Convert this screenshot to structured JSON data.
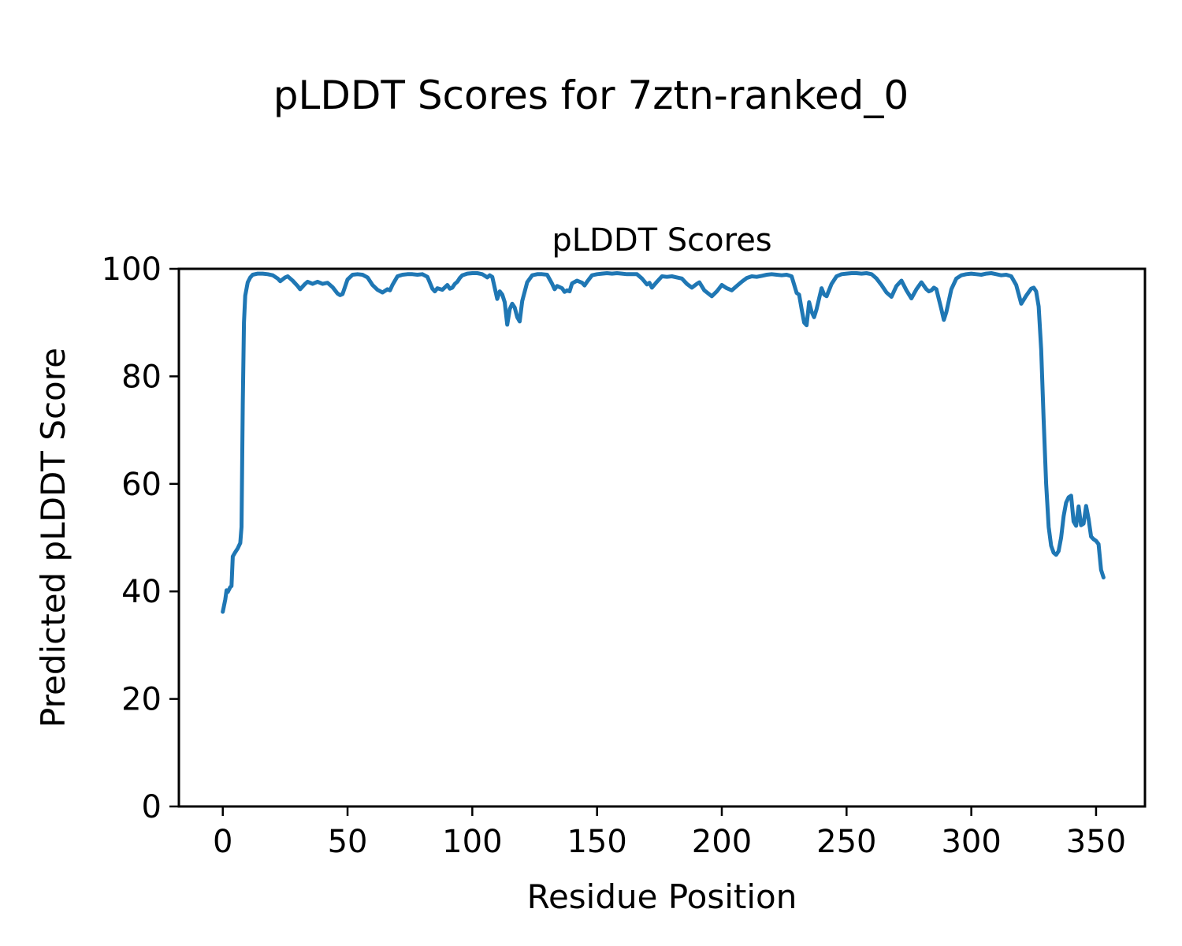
{
  "figure_title": "pLDDT Scores for 7ztn-ranked_0",
  "chart_data": {
    "type": "line",
    "title": "pLDDT Scores",
    "xlabel": "Residue Position",
    "ylabel": "Predicted pLDDT Score",
    "xlim": [
      -17.6,
      369.6
    ],
    "ylim": [
      0,
      100
    ],
    "x_ticks": [
      0,
      50,
      100,
      150,
      200,
      250,
      300,
      350
    ],
    "y_ticks": [
      0,
      20,
      40,
      60,
      80,
      100
    ],
    "grid": false,
    "legend": null,
    "line_color": "#1f77b4",
    "line_width": 5,
    "points": [
      [
        0,
        36.2
      ],
      [
        1,
        38.5
      ],
      [
        1.5,
        40.2
      ],
      [
        2,
        39.9
      ],
      [
        3,
        40.8
      ],
      [
        3.5,
        41
      ],
      [
        4,
        46.5
      ],
      [
        5,
        47.3
      ],
      [
        6,
        48
      ],
      [
        7,
        49
      ],
      [
        7.5,
        52
      ],
      [
        8,
        75
      ],
      [
        8.5,
        90
      ],
      [
        9,
        95
      ],
      [
        10,
        97.5
      ],
      [
        11,
        98.4
      ],
      [
        12,
        98.9
      ],
      [
        14,
        99.1
      ],
      [
        16,
        99.1
      ],
      [
        18,
        99
      ],
      [
        20,
        98.8
      ],
      [
        22,
        98.2
      ],
      [
        23,
        97.7
      ],
      [
        25,
        98.4
      ],
      [
        26,
        98.6
      ],
      [
        28,
        97.8
      ],
      [
        30,
        96.8
      ],
      [
        31,
        96.2
      ],
      [
        33,
        97.2
      ],
      [
        34,
        97.6
      ],
      [
        36,
        97.2
      ],
      [
        38,
        97.6
      ],
      [
        40,
        97.2
      ],
      [
        42,
        97.4
      ],
      [
        44,
        96.6
      ],
      [
        46,
        95.4
      ],
      [
        47,
        95.1
      ],
      [
        48,
        95.3
      ],
      [
        50,
        98
      ],
      [
        52,
        98.9
      ],
      [
        54,
        99
      ],
      [
        56,
        98.9
      ],
      [
        58,
        98.4
      ],
      [
        60,
        97
      ],
      [
        62,
        96.1
      ],
      [
        64,
        95.6
      ],
      [
        65,
        95.9
      ],
      [
        66,
        96.2
      ],
      [
        67,
        96
      ],
      [
        68,
        97
      ],
      [
        70,
        98.6
      ],
      [
        72,
        98.9
      ],
      [
        74,
        99
      ],
      [
        76,
        99
      ],
      [
        78,
        98.9
      ],
      [
        80,
        99
      ],
      [
        82,
        98.5
      ],
      [
        84,
        96.3
      ],
      [
        85,
        95.8
      ],
      [
        86,
        96.4
      ],
      [
        88,
        96.1
      ],
      [
        90,
        97
      ],
      [
        91,
        96.3
      ],
      [
        92,
        96.5
      ],
      [
        93,
        97.2
      ],
      [
        94,
        97.6
      ],
      [
        95,
        98.3
      ],
      [
        96,
        98.8
      ],
      [
        98,
        99.1
      ],
      [
        100,
        99.2
      ],
      [
        102,
        99.2
      ],
      [
        104,
        99
      ],
      [
        106,
        98.4
      ],
      [
        107,
        98.8
      ],
      [
        108,
        98.5
      ],
      [
        110,
        94.4
      ],
      [
        111,
        95.8
      ],
      [
        112,
        95.2
      ],
      [
        113,
        93.8
      ],
      [
        114,
        89.6
      ],
      [
        115,
        92.5
      ],
      [
        116,
        93.5
      ],
      [
        117,
        92.8
      ],
      [
        118,
        91
      ],
      [
        119,
        90.2
      ],
      [
        120,
        94
      ],
      [
        122,
        97.5
      ],
      [
        124,
        98.8
      ],
      [
        126,
        99
      ],
      [
        128,
        99
      ],
      [
        130,
        98.9
      ],
      [
        132,
        97.2
      ],
      [
        133,
        96.2
      ],
      [
        134,
        96.8
      ],
      [
        136,
        96.4
      ],
      [
        137,
        95.7
      ],
      [
        138,
        96
      ],
      [
        139,
        95.8
      ],
      [
        140,
        97.3
      ],
      [
        142,
        97.8
      ],
      [
        144,
        97.4
      ],
      [
        145,
        96.9
      ],
      [
        146,
        97.6
      ],
      [
        148,
        98.8
      ],
      [
        150,
        99
      ],
      [
        152,
        99.1
      ],
      [
        154,
        99.2
      ],
      [
        156,
        99.1
      ],
      [
        158,
        99.2
      ],
      [
        160,
        99.1
      ],
      [
        162,
        99
      ],
      [
        164,
        99
      ],
      [
        166,
        99
      ],
      [
        168,
        98.2
      ],
      [
        170,
        97.1
      ],
      [
        171,
        97.4
      ],
      [
        172,
        96.5
      ],
      [
        174,
        97.6
      ],
      [
        176,
        98.6
      ],
      [
        178,
        98.5
      ],
      [
        180,
        98.6
      ],
      [
        182,
        98.4
      ],
      [
        184,
        98.2
      ],
      [
        186,
        97.2
      ],
      [
        188,
        96.5
      ],
      [
        190,
        97.2
      ],
      [
        191,
        97.5
      ],
      [
        193,
        96
      ],
      [
        196,
        94.9
      ],
      [
        198,
        95.8
      ],
      [
        200,
        97
      ],
      [
        202,
        96.4
      ],
      [
        204,
        96
      ],
      [
        206,
        96.8
      ],
      [
        208,
        97.6
      ],
      [
        210,
        98.3
      ],
      [
        212,
        98.6
      ],
      [
        214,
        98.5
      ],
      [
        216,
        98.7
      ],
      [
        218,
        98.9
      ],
      [
        220,
        99
      ],
      [
        222,
        98.9
      ],
      [
        224,
        98.8
      ],
      [
        226,
        98.9
      ],
      [
        228,
        98.6
      ],
      [
        230,
        95.5
      ],
      [
        231,
        95.2
      ],
      [
        232,
        92.5
      ],
      [
        233,
        90
      ],
      [
        234,
        89.5
      ],
      [
        235,
        93.8
      ],
      [
        236,
        92
      ],
      [
        237,
        91
      ],
      [
        238,
        92.5
      ],
      [
        239,
        94.5
      ],
      [
        240,
        96.4
      ],
      [
        241,
        95.2
      ],
      [
        242,
        94.9
      ],
      [
        244,
        97.2
      ],
      [
        246,
        98.6
      ],
      [
        248,
        99
      ],
      [
        250,
        99.1
      ],
      [
        252,
        99.2
      ],
      [
        254,
        99.2
      ],
      [
        256,
        99.1
      ],
      [
        258,
        99.2
      ],
      [
        260,
        99
      ],
      [
        262,
        98.2
      ],
      [
        264,
        97
      ],
      [
        266,
        95.6
      ],
      [
        268,
        94.8
      ],
      [
        270,
        96.8
      ],
      [
        272,
        97.8
      ],
      [
        274,
        96
      ],
      [
        276,
        94.5
      ],
      [
        278,
        96.2
      ],
      [
        280,
        97.5
      ],
      [
        282,
        96.2
      ],
      [
        283,
        95.8
      ],
      [
        284,
        96
      ],
      [
        285,
        96.5
      ],
      [
        286,
        96.2
      ],
      [
        288,
        92.5
      ],
      [
        289,
        90.5
      ],
      [
        290,
        92
      ],
      [
        292,
        96.2
      ],
      [
        294,
        98.2
      ],
      [
        296,
        98.8
      ],
      [
        298,
        99
      ],
      [
        300,
        99.1
      ],
      [
        302,
        99
      ],
      [
        304,
        98.9
      ],
      [
        306,
        99.1
      ],
      [
        308,
        99.2
      ],
      [
        310,
        99
      ],
      [
        312,
        98.8
      ],
      [
        314,
        98.9
      ],
      [
        316,
        98.6
      ],
      [
        318,
        97
      ],
      [
        320,
        93.5
      ],
      [
        322,
        95
      ],
      [
        324,
        96.3
      ],
      [
        325,
        96.5
      ],
      [
        326,
        95.8
      ],
      [
        327,
        93
      ],
      [
        328,
        85
      ],
      [
        329,
        72
      ],
      [
        330,
        60
      ],
      [
        331,
        52
      ],
      [
        332,
        48.5
      ],
      [
        333,
        47.2
      ],
      [
        334,
        46.8
      ],
      [
        335,
        47.5
      ],
      [
        336,
        50
      ],
      [
        337,
        54
      ],
      [
        338,
        56.5
      ],
      [
        339,
        57.5
      ],
      [
        340,
        57.8
      ],
      [
        341,
        53
      ],
      [
        342,
        52.2
      ],
      [
        343,
        55.8
      ],
      [
        344,
        52.3
      ],
      [
        345,
        52.6
      ],
      [
        346,
        55.9
      ],
      [
        347,
        53.5
      ],
      [
        348,
        50.2
      ],
      [
        349,
        49.7
      ],
      [
        350,
        49.4
      ],
      [
        351,
        48.8
      ],
      [
        352,
        44
      ],
      [
        353,
        42.6
      ]
    ]
  }
}
